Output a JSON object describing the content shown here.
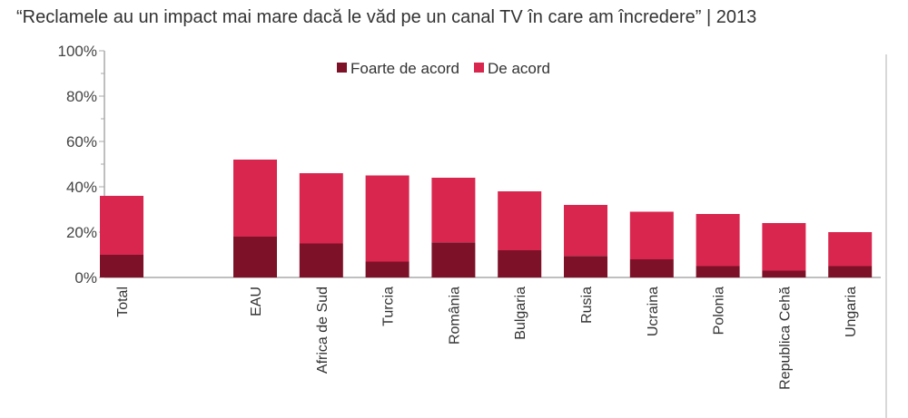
{
  "title": "“Reclamele au un impact mai mare dacă le văd pe un canal TV în care am încredere” | 2013",
  "chart_data": {
    "type": "bar",
    "stacked": true,
    "title": "“Reclamele au un impact mai mare dacă le văd pe un canal TV în care am încredere” | 2013",
    "xlabel": "",
    "ylabel": "",
    "ylim": [
      0,
      100
    ],
    "yticks": [
      "0%",
      "20%",
      "40%",
      "60%",
      "80%",
      "100%"
    ],
    "grid": false,
    "legend_position": "top-center",
    "categories": [
      "Total",
      "EAU",
      "Africa de Sud",
      "Turcia",
      "România",
      "Bulgaria",
      "Rusia",
      "Ucraina",
      "Polonia",
      "Republica Cehă",
      "Ungaria"
    ],
    "series": [
      {
        "name": "Foarte de acord",
        "color": "#7d1128",
        "values": [
          10,
          18,
          15,
          7,
          15.5,
          12,
          9.5,
          8,
          5,
          3,
          5
        ]
      },
      {
        "name": "De acord",
        "color": "#d9264e",
        "values": [
          26,
          34,
          31,
          38,
          28.5,
          26,
          22.5,
          21,
          23,
          21,
          15
        ]
      }
    ]
  }
}
